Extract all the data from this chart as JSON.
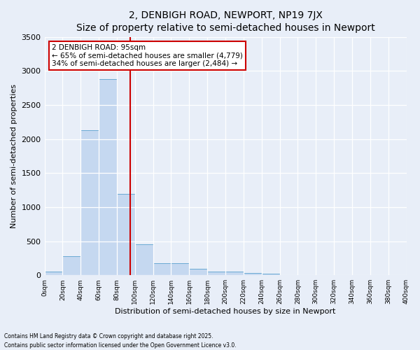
{
  "title": "2, DENBIGH ROAD, NEWPORT, NP19 7JX",
  "subtitle": "Size of property relative to semi-detached houses in Newport",
  "xlabel": "Distribution of semi-detached houses by size in Newport",
  "ylabel": "Number of semi-detached properties",
  "bar_color": "#c5d8f0",
  "bar_edge_color": "#6aaad4",
  "background_color": "#e8eef8",
  "bin_edges": [
    0,
    20,
    40,
    60,
    80,
    100,
    120,
    140,
    160,
    180,
    200,
    220,
    240,
    260,
    280,
    300,
    320,
    340,
    360,
    380,
    400
  ],
  "bin_values": [
    50,
    280,
    2130,
    2880,
    1190,
    450,
    175,
    175,
    90,
    55,
    55,
    35,
    20,
    5,
    5,
    5,
    0,
    0,
    0,
    0
  ],
  "property_size": 95,
  "vline_color": "#cc0000",
  "annotation_text": "2 DENBIGH ROAD: 95sqm\n← 65% of semi-detached houses are smaller (4,779)\n34% of semi-detached houses are larger (2,484) →",
  "annotation_box_color": "white",
  "annotation_box_edge_color": "#cc0000",
  "ylim": [
    0,
    3500
  ],
  "yticks": [
    0,
    500,
    1000,
    1500,
    2000,
    2500,
    3000,
    3500
  ],
  "footnote": "Contains HM Land Registry data © Crown copyright and database right 2025.\nContains public sector information licensed under the Open Government Licence v3.0.",
  "tick_labels": [
    "0sqm",
    "20sqm",
    "40sqm",
    "60sqm",
    "80sqm",
    "100sqm",
    "120sqm",
    "140sqm",
    "160sqm",
    "180sqm",
    "200sqm",
    "220sqm",
    "240sqm",
    "260sqm",
    "280sqm",
    "300sqm",
    "320sqm",
    "340sqm",
    "360sqm",
    "380sqm",
    "400sqm"
  ],
  "title_fontsize": 10,
  "subtitle_fontsize": 9,
  "xlabel_fontsize": 8,
  "ylabel_fontsize": 8
}
